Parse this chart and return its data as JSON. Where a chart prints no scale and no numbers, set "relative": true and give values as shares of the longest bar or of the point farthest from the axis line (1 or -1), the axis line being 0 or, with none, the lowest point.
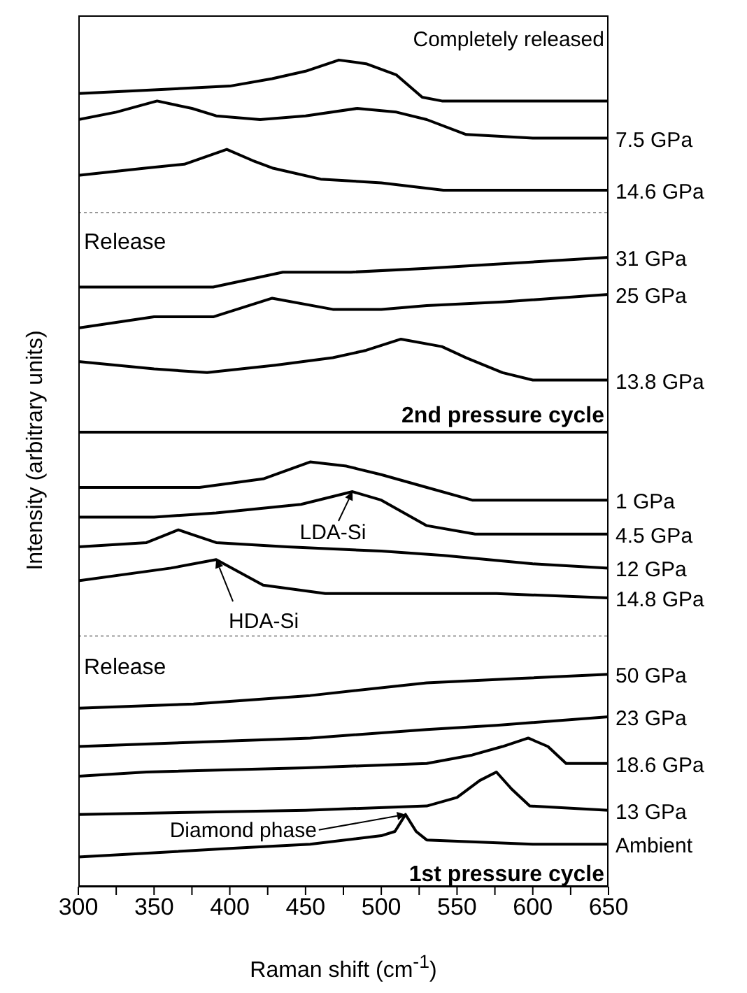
{
  "chart_data": [
    {
      "type": "line",
      "relative": true,
      "ylabel": "Intensity (arbitrary units)",
      "xlim": [
        300,
        650
      ],
      "tick_labels": false,
      "series": [
        {
          "name": "Completely released",
          "color": "#000000",
          "x": [
            300,
            350,
            400,
            428,
            450,
            472,
            490,
            510,
            527,
            540,
            600,
            650
          ],
          "values": [
            0.91,
            0.92,
            0.93,
            0.95,
            0.97,
            1,
            0.99,
            0.96,
            0.9,
            0.89,
            0.89,
            0.89
          ]
        },
        {
          "name": "7.5 GPa",
          "color": "#000000",
          "x": [
            300,
            325,
            352,
            375,
            391,
            420,
            450,
            484,
            510,
            530,
            556,
            600,
            650
          ],
          "values": [
            0.84,
            0.86,
            0.89,
            0.87,
            0.85,
            0.84,
            0.85,
            0.87,
            0.86,
            0.84,
            0.8,
            0.79,
            0.79
          ]
        },
        {
          "name": "14.6 GPa",
          "color": "#000000",
          "x": [
            300,
            345,
            370,
            398,
            415,
            428,
            460,
            500,
            541,
            600,
            650
          ],
          "values": [
            0.69,
            0.71,
            0.72,
            0.76,
            0.73,
            0.71,
            0.68,
            0.67,
            0.65,
            0.65,
            0.65
          ]
        },
        {
          "name": "31 GPa",
          "color": "#000000",
          "x": [
            300,
            350,
            389,
            435,
            480,
            530,
            570,
            610,
            650
          ],
          "values": [
            0.39,
            0.39,
            0.39,
            0.43,
            0.43,
            0.44,
            0.45,
            0.46,
            0.47
          ]
        },
        {
          "name": "25 GPa",
          "color": "#000000",
          "x": [
            300,
            350,
            389,
            428,
            468,
            500,
            530,
            580,
            650
          ],
          "values": [
            0.28,
            0.31,
            0.31,
            0.36,
            0.33,
            0.33,
            0.34,
            0.35,
            0.37
          ]
        },
        {
          "name": "13.8 GPa",
          "color": "#000000",
          "x": [
            300,
            350,
            385,
            430,
            468,
            490,
            513,
            540,
            556,
            580,
            600,
            650
          ],
          "values": [
            0.19,
            0.17,
            0.16,
            0.18,
            0.2,
            0.22,
            0.25,
            0.23,
            0.2,
            0.16,
            0.14,
            0.14
          ]
        }
      ],
      "ref_lines": [
        {
          "axis": "y",
          "value": 0.59,
          "color": "#999999",
          "line_style": "dotted"
        }
      ],
      "annotations": [
        "Release",
        "2nd pressure cycle"
      ]
    },
    {
      "type": "line",
      "relative": true,
      "xlabel": "Raman shift (cm$^{-1}$)",
      "xlim": [
        300,
        650
      ],
      "xticks": [
        300,
        {
          "value": 325,
          "label": null
        },
        350,
        {
          "value": 375,
          "label": null
        },
        400,
        {
          "value": 425,
          "label": null
        },
        450,
        {
          "value": 475,
          "label": null
        },
        500,
        {
          "value": 525,
          "label": null
        },
        550,
        {
          "value": 575,
          "label": null
        },
        600,
        {
          "value": 625,
          "label": null
        },
        650
      ],
      "series": [
        {
          "name": "1 GPa",
          "color": "#000000",
          "x": [
            300,
            345,
            380,
            422,
            453,
            477,
            500,
            530,
            560,
            600,
            650
          ],
          "values": [
            0.94,
            0.94,
            0.94,
            0.96,
            1,
            0.99,
            0.97,
            0.94,
            0.91,
            0.91,
            0.91
          ]
        },
        {
          "name": "4.5 GPa",
          "color": "#000000",
          "x": [
            300,
            350,
            391,
            447,
            481,
            500,
            530,
            562,
            600,
            650
          ],
          "values": [
            0.87,
            0.87,
            0.88,
            0.9,
            0.93,
            0.91,
            0.85,
            0.83,
            0.83,
            0.83
          ]
        },
        {
          "name": "12 GPa",
          "color": "#000000",
          "x": [
            300,
            345,
            366,
            391,
            438,
            500,
            541,
            600,
            650
          ],
          "values": [
            0.8,
            0.81,
            0.84,
            0.81,
            0.8,
            0.79,
            0.78,
            0.76,
            0.75
          ]
        },
        {
          "name": "14.8 GPa",
          "color": "#000000",
          "x": [
            300,
            361,
            391,
            422,
            463,
            520,
            576,
            650
          ],
          "values": [
            0.72,
            0.75,
            0.77,
            0.71,
            0.69,
            0.69,
            0.69,
            0.68
          ]
        },
        {
          "name": "50 GPa",
          "color": "#000000",
          "x": [
            300,
            376,
            453,
            530,
            590,
            650
          ],
          "values": [
            0.42,
            0.43,
            0.45,
            0.48,
            0.49,
            0.5
          ]
        },
        {
          "name": "23 GPa",
          "color": "#000000",
          "x": [
            300,
            376,
            453,
            530,
            576,
            650
          ],
          "values": [
            0.33,
            0.34,
            0.35,
            0.37,
            0.38,
            0.4
          ]
        },
        {
          "name": "18.6 GPa",
          "color": "#000000",
          "x": [
            300,
            345,
            450,
            530,
            560,
            580,
            597,
            610,
            622,
            650
          ],
          "values": [
            0.26,
            0.27,
            0.28,
            0.29,
            0.31,
            0.33,
            0.35,
            0.33,
            0.29,
            0.29
          ]
        },
        {
          "name": "13 GPa",
          "color": "#000000",
          "x": [
            300,
            450,
            530,
            550,
            565,
            576,
            586,
            598,
            650
          ],
          "values": [
            0.17,
            0.18,
            0.19,
            0.21,
            0.25,
            0.27,
            0.23,
            0.19,
            0.18
          ]
        },
        {
          "name": "Ambient",
          "color": "#000000",
          "x": [
            300,
            400,
            453,
            500,
            509,
            516,
            523,
            530,
            600,
            650
          ],
          "values": [
            0.07,
            0.09,
            0.1,
            0.12,
            0.13,
            0.17,
            0.13,
            0.11,
            0.1,
            0.1
          ]
        }
      ],
      "ref_lines": [
        {
          "axis": "y",
          "value": 0.59,
          "color": "#999999",
          "line_style": "dotted"
        }
      ],
      "annotations": [
        {
          "text": "LDA-Si",
          "x": 481,
          "y": 0.93
        },
        {
          "text": "HDA-Si",
          "x": 391,
          "y": 0.77
        },
        {
          "text": "Diamond phase",
          "x": 516,
          "y": 0.17
        },
        "Release",
        "1st pressure cycle"
      ]
    }
  ]
}
